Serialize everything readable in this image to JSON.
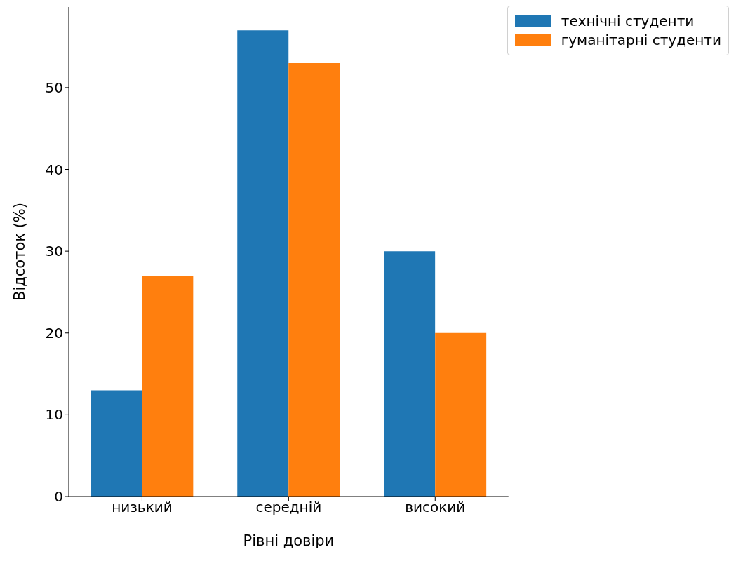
{
  "chart_data": {
    "type": "bar",
    "xlabel": "Рівні довіри",
    "ylabel": "Відсоток (%)",
    "categories": [
      "низький",
      "середній",
      "високий"
    ],
    "series": [
      {
        "name": "технічні студенти",
        "color": "#1f77b4",
        "values": [
          13,
          57,
          30
        ]
      },
      {
        "name": "гуманітарні студенти",
        "color": "#ff7f0e",
        "values": [
          27,
          53,
          20
        ]
      }
    ],
    "ylim": [
      0,
      59.85
    ],
    "yticks": [
      0,
      10,
      20,
      30,
      40,
      50
    ],
    "grid": false,
    "legend": "top right"
  }
}
